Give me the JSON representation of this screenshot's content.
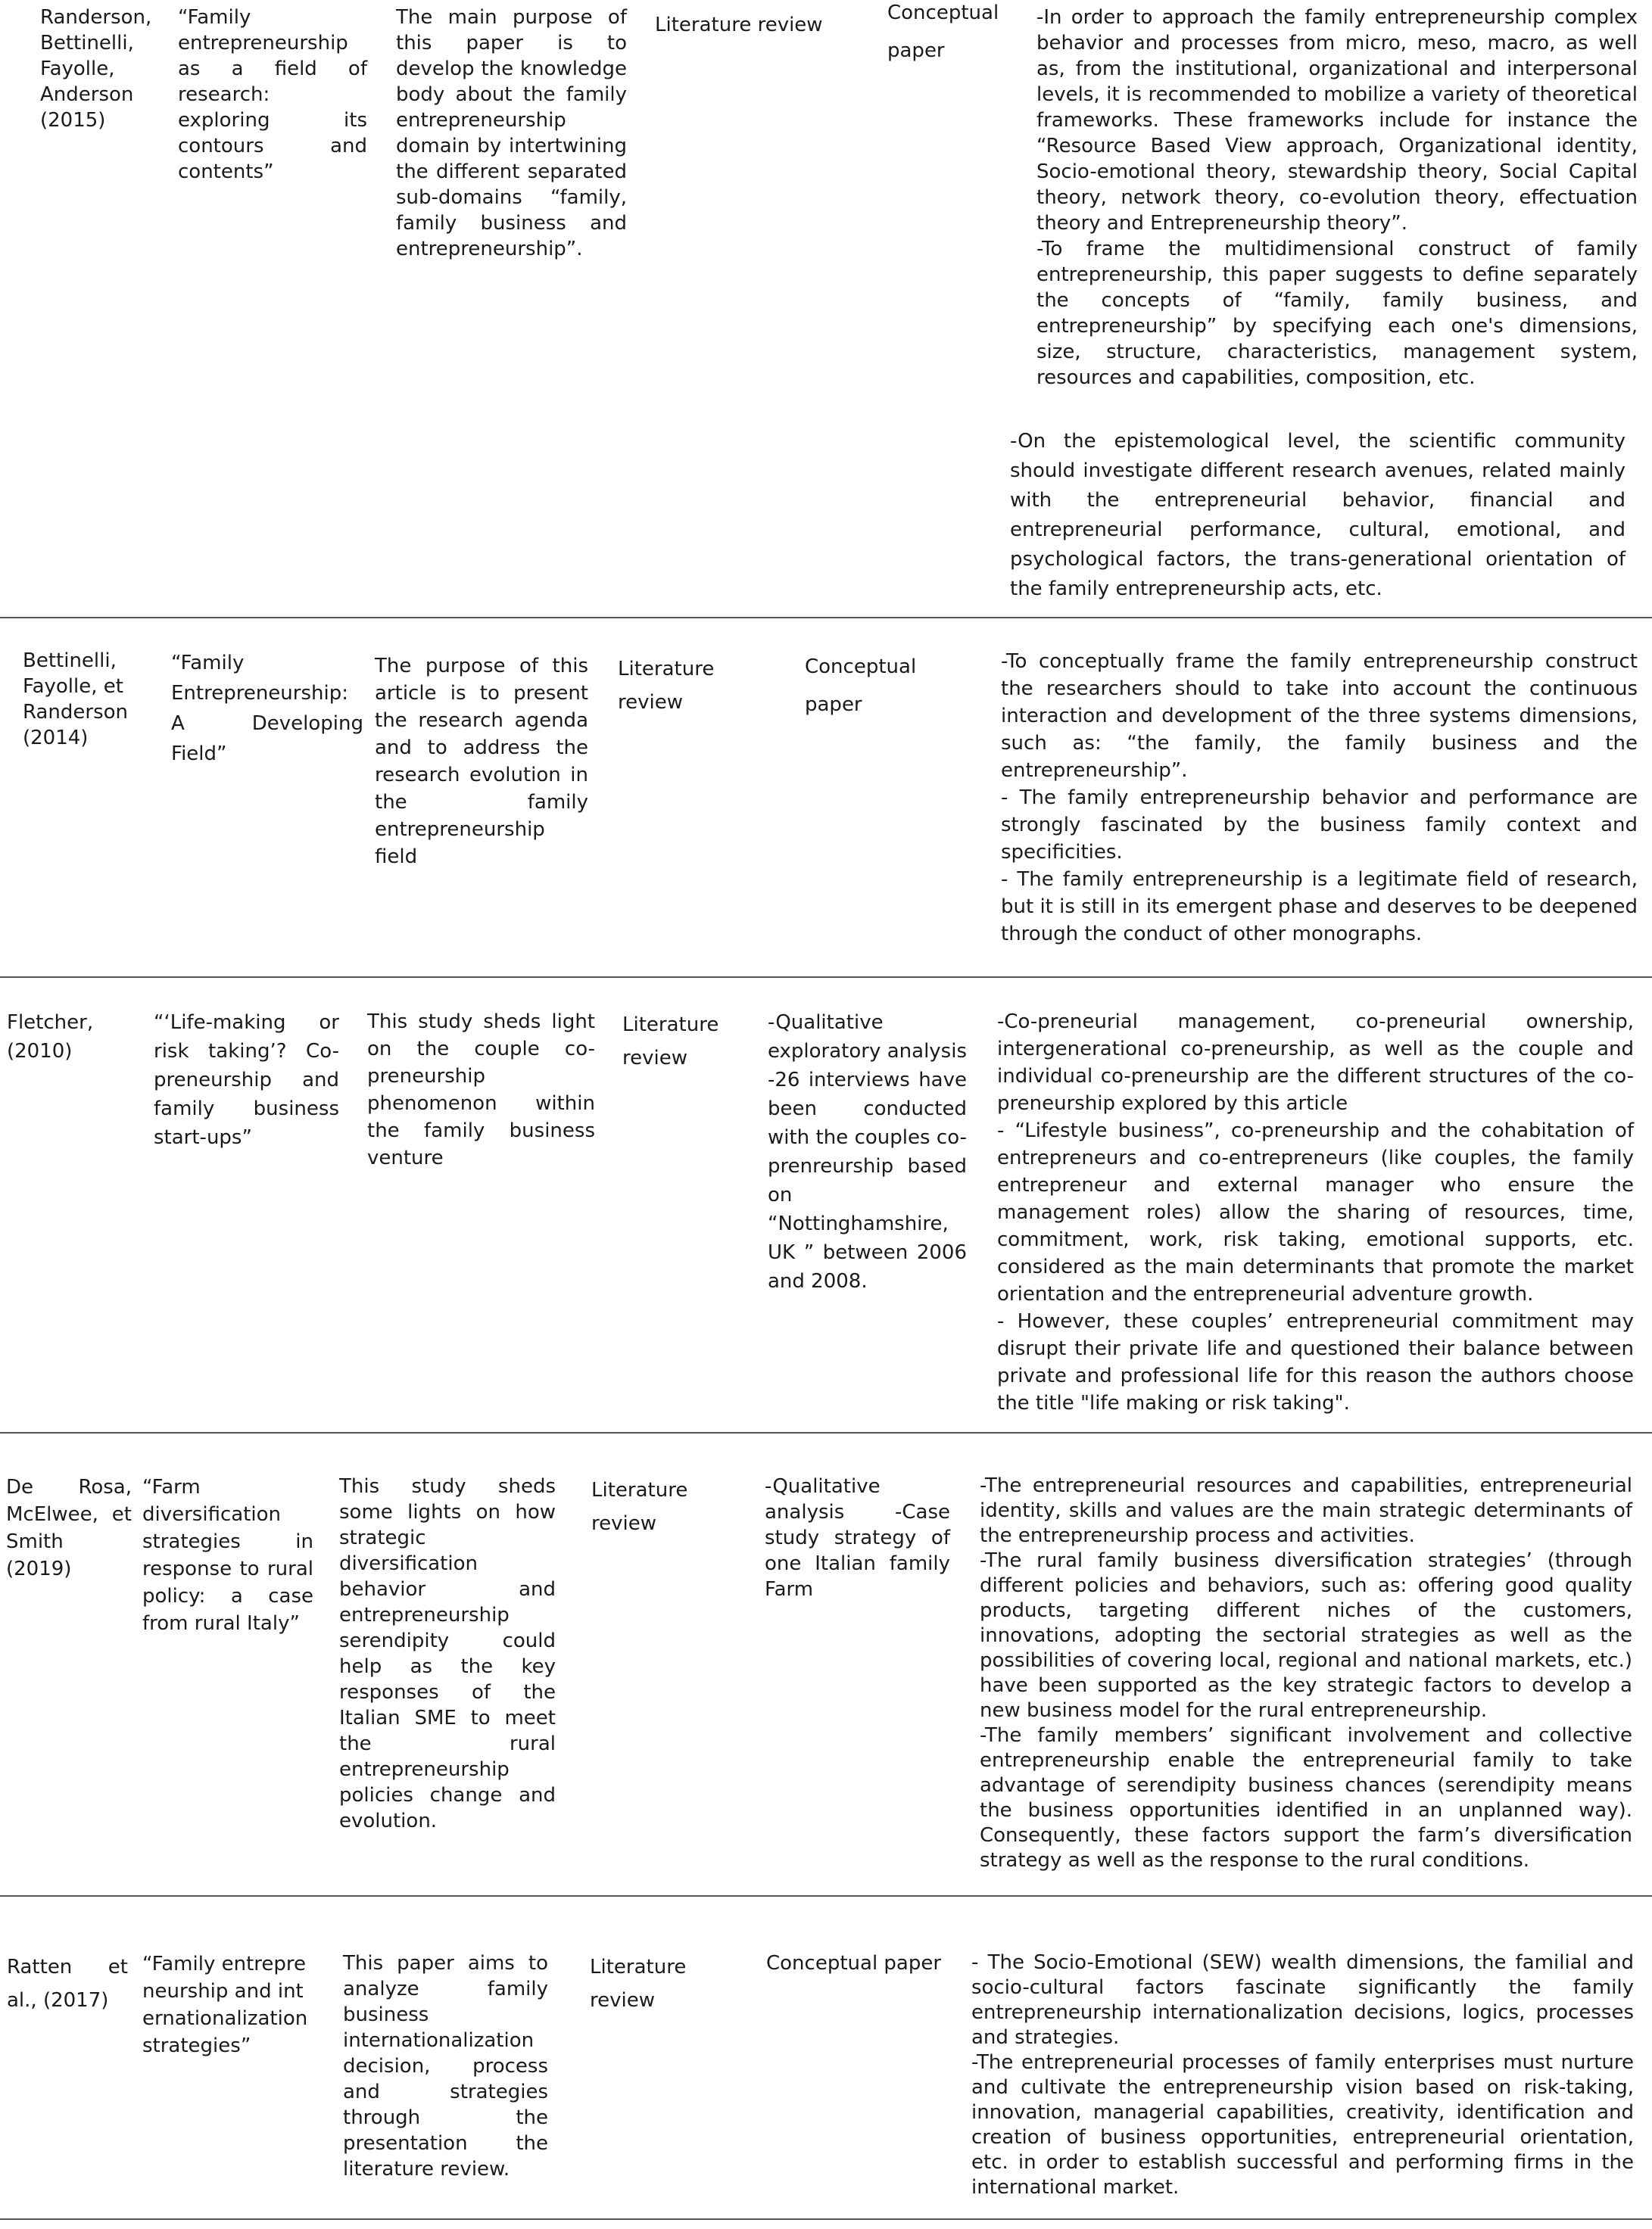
{
  "rows": [
    {
      "authors": "Randerson, Bettinelli, Fayolle, Anderson (2015)",
      "title": "“Family entrepreneurship as a field of research: exploring its contours and contents”",
      "purpose": "The main purpose of this paper is to develop the knowledge body about the family entrepreneurship domain by intertwining the different separated sub-domains “family, family business and entrepreneurship”.",
      "method": "Literature review",
      "design": "Conceptual paper",
      "findings": [
        "-In order to approach the family entrepreneurship complex behavior and processes from micro, meso, macro, as well as, from the institutional, organizational and interpersonal levels, it is recommended to mobilize a variety of theoretical frameworks. These frameworks include for instance the “Resource Based View approach, Organizational identity, Socio-emotional theory, stewardship theory, Social Capital theory, network theory, co-evolution theory, effectuation theory and Entrepreneurship theory”.",
        "-To frame the multidimensional construct of family entrepreneurship, this paper suggests to define separately the concepts of “family, family business, and entrepreneurship” by specifying each one's dimensions, size, structure, characteristics, management system, resources and capabilities, composition, etc.",
        "-On the epistemological level, the scientific community should investigate different research avenues, related mainly with the entrepreneurial behavior, financial and entrepreneurial performance, cultural, emotional, and psychological factors, the trans-generational orientation of the family entrepreneurship acts, etc."
      ]
    },
    {
      "authors": "Bettinelli, Fayolle, et Randerson (2014)",
      "title": "“Family Entrepreneurship: A Developing Field”",
      "purpose": "The purpose of this article is to present the research agenda and to address the research evolution in the family entrepreneurship field",
      "method": "Literature review",
      "design": "Conceptual paper",
      "findings": [
        "-To conceptually frame the family entrepreneurship construct the researchers should to take into account the continuous interaction and development of the three systems dimensions, such as: “the family, the family business and the entrepreneurship”.",
        "- The family entrepreneurship behavior and performance are strongly fascinated by the business family context and specificities.",
        "- The family entrepreneurship is a legitimate field of research, but it is still in its emergent phase and deserves to be deepened through the conduct of other monographs."
      ]
    },
    {
      "authors": "Fletcher, (2010)",
      "title": "“‘Life-making or risk taking’? Co-preneurship and family business start-ups”",
      "purpose": "This study sheds light on the couple co-preneurship phenomenon within the family business venture",
      "method": "Literature review",
      "design": "-Qualitative exploratory analysis -26 interviews have been conducted with the couples co-prenreurship based on “Nottinghamshire, UK ” between 2006 and 2008.",
      "findings": [
        "-Co-preneurial management, co-preneurial ownership, intergenerational co-preneurship, as well as the couple and individual co-preneurship are the different structures of the co-preneurship explored by this article",
        "- “Lifestyle business”, co-preneurship and the cohabitation of entrepreneurs and co-entrepreneurs (like couples, the family entrepreneur and external manager who ensure the management roles) allow the sharing of resources, time, commitment, work, risk taking, emotional supports, etc. considered as the main determinants that promote the market orientation and the entrepreneurial adventure growth.",
        "- However, these couples’ entrepreneurial commitment may disrupt their private life and questioned their balance between private and professional life for this reason the authors choose the title \"life making or risk taking\"."
      ]
    },
    {
      "authors": "De Rosa, McElwee, et Smith (2019)",
      "title": "“Farm diversification strategies in response to rural policy: a case from rural Italy”",
      "purpose": "This study sheds some lights on how strategic diversification behavior and entrepreneurship serendipity could help as the key responses of the Italian SME to meet the rural entrepreneurship policies change and evolution.",
      "method": "Literature review",
      "design": "-Qualitative analysis -Case study strategy of one Italian family Farm",
      "findings": [
        "-The entrepreneurial resources and capabilities, entrepreneurial identity, skills and values are the main strategic determinants of the entrepreneurship process and activities.",
        "-The rural family business diversification strategies’ (through different policies and behaviors, such as: offering good quality products, targeting different niches of the customers, innovations, adopting the sectorial strategies as well as the possibilities of covering local, regional and national markets, etc.) have been supported as the key strategic factors to develop a new business model for the rural entrepreneurship.",
        "-The family members’ significant involvement and collective entrepreneurship enable the entrepreneurial family to take advantage of serendipity business chances (serendipity means the business opportunities identified in an unplanned way). Consequently, these factors support the farm’s diversification strategy as well as the response to the rural conditions."
      ]
    },
    {
      "authors": "Ratten et al., (2017)",
      "title": "“Family entrepreneurship and internationalization strategies”",
      "purpose": "This paper aims to analyze family business internationalization decision, process and strategies through the presentation the literature review.",
      "method": "Literature review",
      "design": "Conceptual paper",
      "findings": [
        "- The Socio-Emotional (SEW) wealth dimensions, the familial and socio-cultural factors fascinate significantly the family entrepreneurship internationalization decisions, logics, processes and strategies.",
        "-The entrepreneurial processes of family enterprises must nurture and cultivate the entrepreneurship vision based on risk-taking, innovation, managerial capabilities, creativity, identification and creation of business opportunities, entrepreneurial orientation, etc. in order to establish successful and performing firms in the international market."
      ]
    }
  ]
}
